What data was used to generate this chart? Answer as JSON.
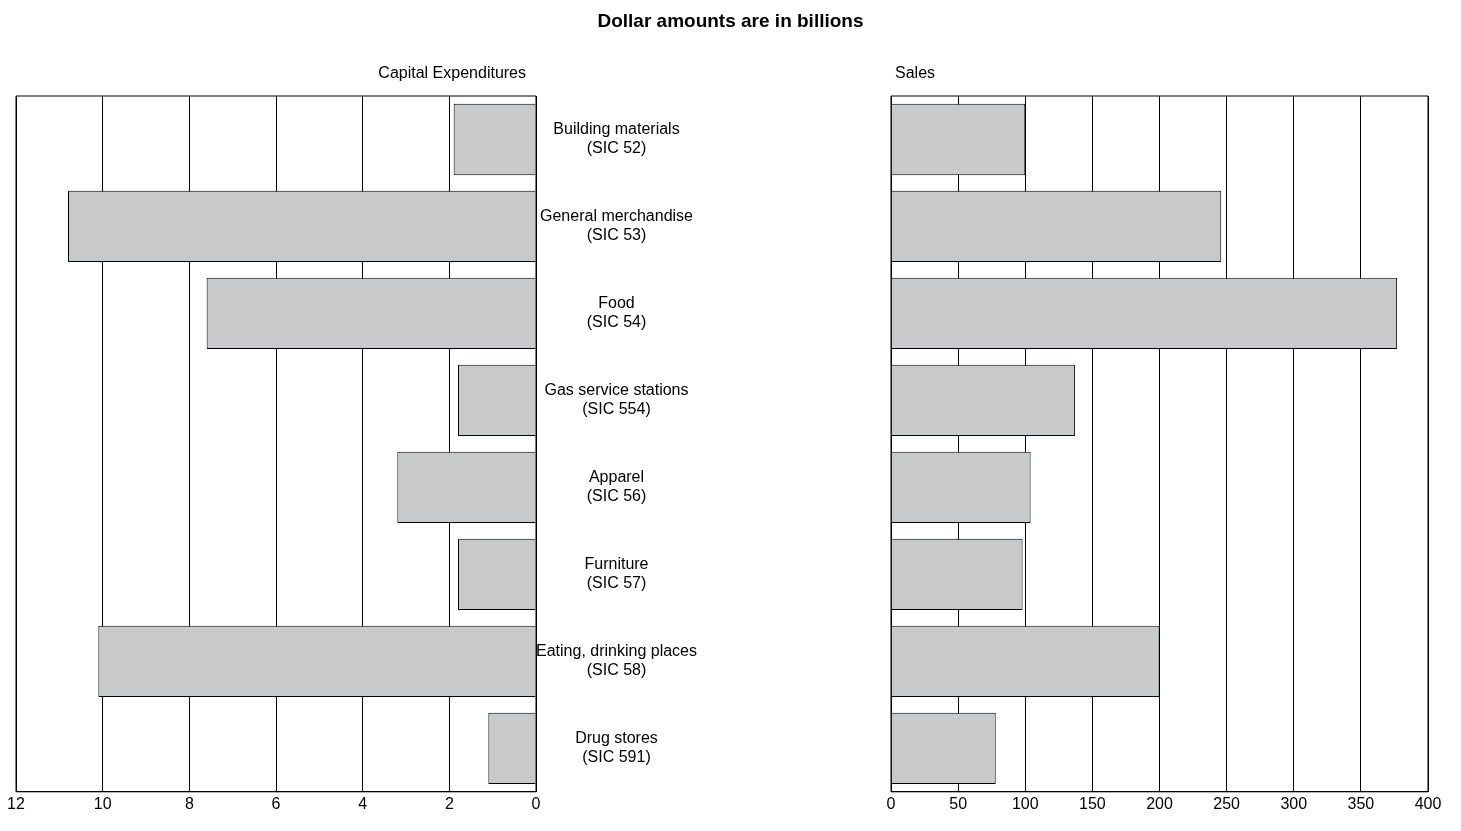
{
  "chart_data": [
    {
      "type": "bar",
      "orientation": "horizontal",
      "title": "Dollar amounts are in billions",
      "subtitle": "Capital Expenditures",
      "categories": [
        "Building materials\n(SIC 52)",
        "General merchandise\n(SIC 53)",
        "Food\n(SIC 54)",
        "Gas service stations\n(SIC 554)",
        "Apparel\n(SIC 56)",
        "Furniture\n(SIC 57)",
        "Eating, drinking places\n(SIC 58)",
        "Drug stores\n(SIC 591)"
      ],
      "values": [
        1.9,
        10.8,
        7.6,
        1.8,
        3.2,
        1.8,
        10.1,
        1.1
      ],
      "color": "#c8c9cb",
      "xlim": [
        12,
        0
      ],
      "xticks": [
        12,
        10,
        8,
        6,
        4,
        2,
        0
      ],
      "grid": "x"
    },
    {
      "type": "bar",
      "orientation": "horizontal",
      "title": "Sales",
      "categories": [
        null,
        null,
        null,
        null,
        null,
        null,
        null,
        null
      ],
      "values": [
        100,
        246,
        377,
        137,
        104,
        98,
        200,
        78
      ],
      "color": "#c8c9cb",
      "xlim": [
        0,
        400
      ],
      "xticks": [
        0,
        50,
        100,
        150,
        200,
        250,
        300,
        350,
        400
      ],
      "grid": "x",
      "tick_labels": "x"
    }
  ]
}
